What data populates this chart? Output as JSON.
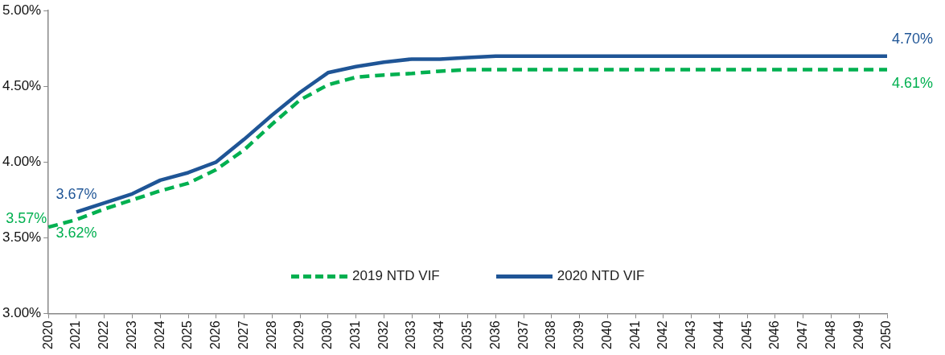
{
  "chart_data": {
    "type": "line",
    "categories": [
      "2020",
      "2021",
      "2022",
      "2023",
      "2024",
      "2025",
      "2026",
      "2027",
      "2028",
      "2029",
      "2030",
      "2031",
      "2032",
      "2033",
      "2034",
      "2035",
      "2036",
      "2037",
      "2038",
      "2039",
      "2040",
      "2041",
      "2042",
      "2043",
      "2044",
      "2045",
      "2046",
      "2047",
      "2048",
      "2049",
      "2050"
    ],
    "series": [
      {
        "name": "2019 NTD VIF",
        "color": "#00b050",
        "line_style": "dashed",
        "values": [
          3.57,
          3.62,
          3.69,
          3.75,
          3.81,
          3.86,
          3.95,
          4.08,
          4.25,
          4.41,
          4.51,
          4.56,
          4.575,
          4.585,
          4.6,
          4.61,
          4.61,
          4.61,
          4.61,
          4.61,
          4.61,
          4.61,
          4.61,
          4.61,
          4.61,
          4.61,
          4.61,
          4.61,
          4.61,
          4.61,
          4.61
        ],
        "value_labels": [
          "3.57%",
          "3.62%",
          null,
          null,
          null,
          null,
          null,
          null,
          null,
          null,
          null,
          null,
          null,
          null,
          null,
          null,
          null,
          null,
          null,
          null,
          null,
          null,
          null,
          null,
          null,
          null,
          null,
          null,
          null,
          null,
          "4.61%"
        ]
      },
      {
        "name": "2020 NTD VIF",
        "color": "#1f5596",
        "line_style": "solid",
        "values": [
          null,
          3.67,
          3.73,
          3.79,
          3.88,
          3.93,
          4.0,
          4.15,
          4.31,
          4.46,
          4.59,
          4.63,
          4.66,
          4.68,
          4.68,
          4.69,
          4.7,
          4.7,
          4.7,
          4.7,
          4.7,
          4.7,
          4.7,
          4.7,
          4.7,
          4.7,
          4.7,
          4.7,
          4.7,
          4.7,
          4.7
        ],
        "value_labels": [
          null,
          "3.67%",
          null,
          null,
          null,
          null,
          null,
          null,
          null,
          null,
          null,
          null,
          null,
          null,
          null,
          null,
          null,
          null,
          null,
          null,
          null,
          null,
          null,
          null,
          null,
          null,
          null,
          null,
          null,
          null,
          "4.70%"
        ]
      }
    ],
    "ylim": [
      3.0,
      5.0
    ],
    "yticks": [
      {
        "value": 3.0,
        "label": "3.00%"
      },
      {
        "value": 3.5,
        "label": "3.50%"
      },
      {
        "value": 4.0,
        "label": "4.00%"
      },
      {
        "value": 4.5,
        "label": "4.50%"
      },
      {
        "value": 5.0,
        "label": "5.00%"
      }
    ],
    "grid": false,
    "legend": "bottom",
    "marker": "none"
  }
}
